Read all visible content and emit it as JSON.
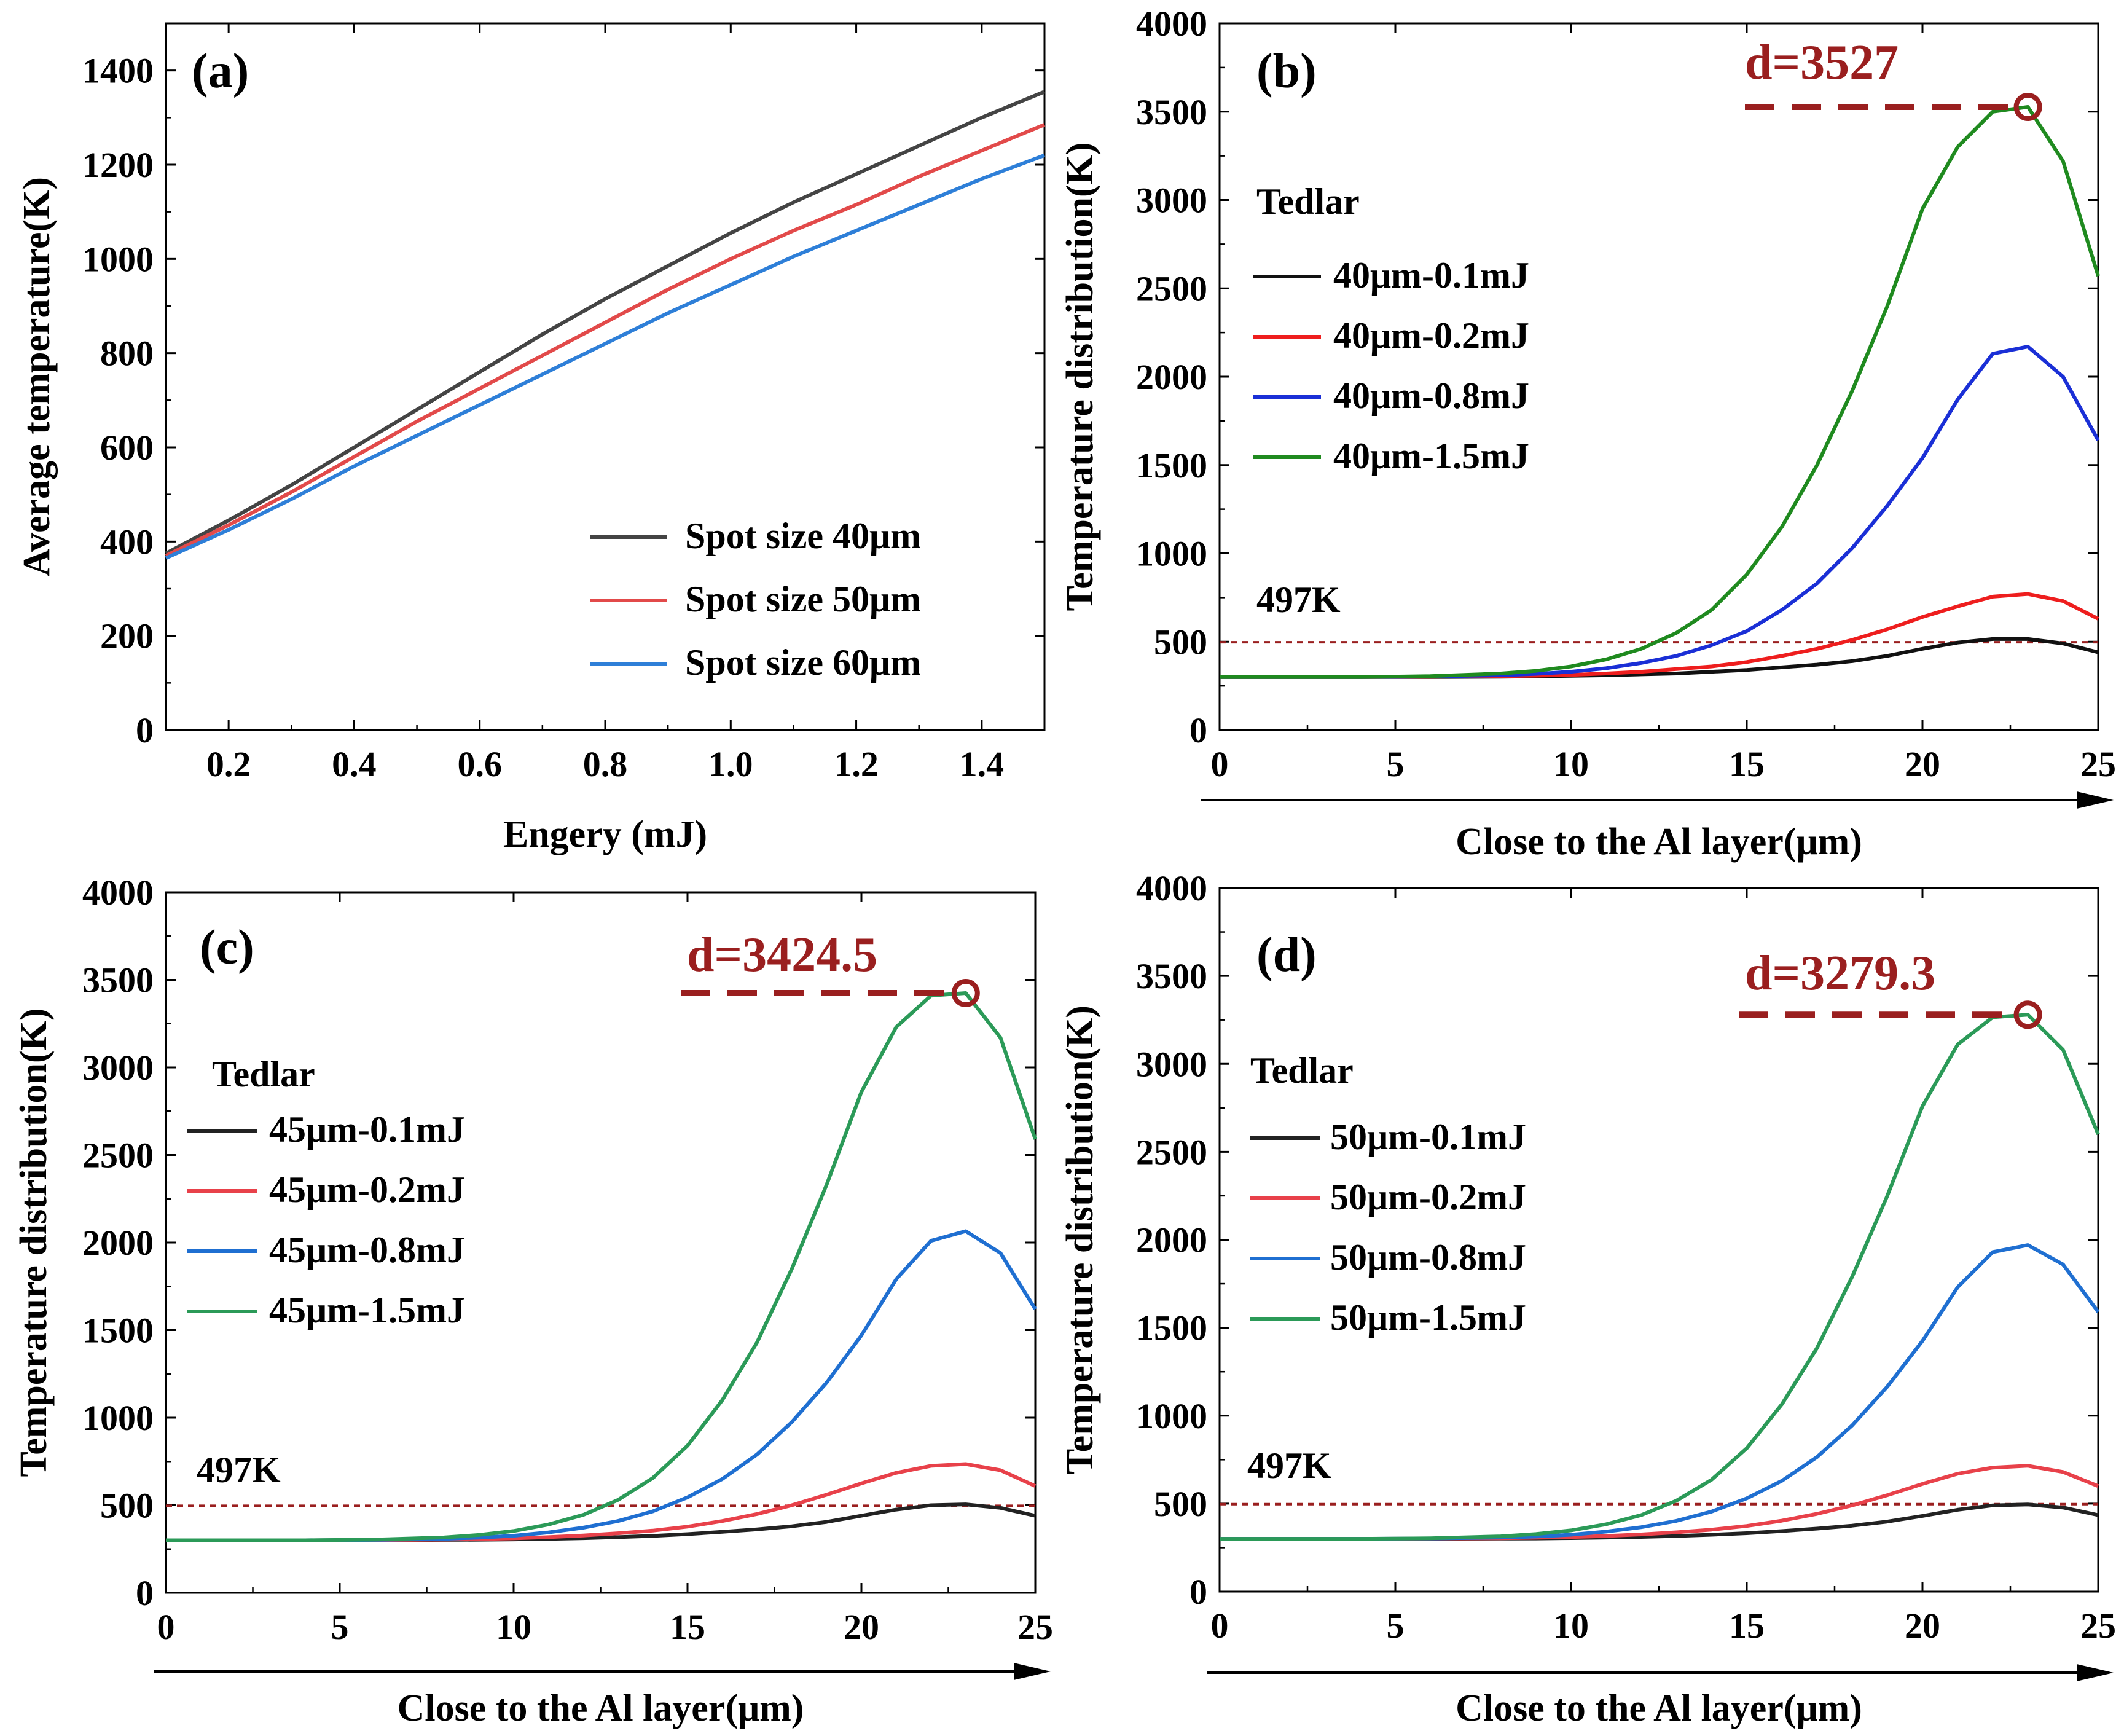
{
  "colors": {
    "black": "#222222",
    "red": "#e8414a",
    "blue": "#1f6fd1",
    "green": "#2b9a58",
    "dark_red": "#9a1f1f",
    "panel_a_black": "#444444",
    "panel_a_red": "#e24a4a",
    "panel_a_blue": "#2e7fd8",
    "panel_b_blue": "#1a2fd6",
    "panel_b_green": "#1f8a1f",
    "panel_b_red": "#ee1e1e",
    "panel_b_black": "#111111"
  },
  "chart_data": [
    {
      "panel": "(a)",
      "type": "line",
      "xlabel": "Engery (mJ)",
      "ylabel": "Average temperature(K)",
      "xlim": [
        0.1,
        1.5
      ],
      "ylim": [
        0,
        1500
      ],
      "xticks": [
        "0.2",
        "0.4",
        "0.6",
        "0.8",
        "1.0",
        "1.2",
        "1.4"
      ],
      "xtick_values": [
        0.2,
        0.4,
        0.6,
        0.8,
        1.0,
        1.2,
        1.4
      ],
      "yticks": [
        "0",
        "200",
        "400",
        "600",
        "800",
        "1000",
        "1200",
        "1400"
      ],
      "ytick_values": [
        0,
        200,
        400,
        600,
        800,
        1000,
        1200,
        1400
      ],
      "x": [
        0.1,
        0.2,
        0.3,
        0.4,
        0.5,
        0.6,
        0.7,
        0.8,
        0.9,
        1.0,
        1.1,
        1.2,
        1.3,
        1.4,
        1.5
      ],
      "series": [
        {
          "name": "Spot size 40μm",
          "color_key": "panel_a_black",
          "values": [
            375,
            445,
            520,
            600,
            680,
            760,
            840,
            915,
            985,
            1055,
            1120,
            1180,
            1240,
            1300,
            1355
          ]
        },
        {
          "name": "Spot size 50μm",
          "color_key": "panel_a_red",
          "values": [
            370,
            435,
            505,
            580,
            655,
            725,
            795,
            865,
            935,
            1000,
            1060,
            1115,
            1175,
            1230,
            1285
          ]
        },
        {
          "name": "Spot size 60μm",
          "color_key": "panel_a_blue",
          "values": [
            365,
            425,
            490,
            560,
            625,
            690,
            755,
            820,
            885,
            945,
            1005,
            1060,
            1115,
            1170,
            1220
          ]
        }
      ],
      "legend": [
        "Spot size 40μm",
        "Spot size 50μm",
        "Spot size 60μm"
      ]
    },
    {
      "panel": "(b)",
      "type": "line",
      "xlabel": "Close to the Al layer(μm)",
      "ylabel": "Temperature distribution(K)",
      "xlim": [
        0,
        25
      ],
      "ylim": [
        0,
        4000
      ],
      "xticks": [
        "0",
        "5",
        "10",
        "15",
        "20",
        "25"
      ],
      "xtick_values": [
        0,
        5,
        10,
        15,
        20,
        25
      ],
      "yticks": [
        "0",
        "500",
        "1000",
        "1500",
        "2000",
        "2500",
        "3000",
        "3500",
        "4000"
      ],
      "ytick_values": [
        0,
        500,
        1000,
        1500,
        2000,
        2500,
        3000,
        3500,
        4000
      ],
      "material": "Tedlar",
      "ref_label": "497K",
      "ref_value": 497,
      "peak_label": "d=3527",
      "peak": [
        23,
        3527
      ],
      "x": [
        0,
        2,
        4,
        6,
        8,
        9,
        10,
        11,
        12,
        13,
        14,
        15,
        16,
        17,
        18,
        19,
        20,
        21,
        22,
        23,
        24,
        25
      ],
      "series": [
        {
          "name": "40μm-0.1mJ",
          "color_key": "panel_b_black",
          "values": [
            300,
            300,
            300,
            300,
            302,
            304,
            307,
            310,
            315,
            320,
            330,
            340,
            355,
            370,
            390,
            420,
            460,
            495,
            515,
            515,
            490,
            440
          ]
        },
        {
          "name": "40μm-0.2mJ",
          "color_key": "panel_b_red",
          "values": [
            300,
            300,
            300,
            302,
            305,
            308,
            312,
            320,
            330,
            345,
            360,
            385,
            420,
            460,
            510,
            570,
            640,
            700,
            755,
            770,
            730,
            630
          ]
        },
        {
          "name": "40μm-0.8mJ",
          "color_key": "panel_b_blue",
          "values": [
            300,
            300,
            300,
            303,
            310,
            318,
            330,
            350,
            380,
            420,
            480,
            560,
            680,
            830,
            1030,
            1270,
            1540,
            1870,
            2130,
            2170,
            2000,
            1640
          ]
        },
        {
          "name": "40μm-1.5mJ",
          "color_key": "panel_b_green",
          "values": [
            300,
            300,
            300,
            305,
            320,
            335,
            360,
            400,
            460,
            550,
            680,
            880,
            1150,
            1500,
            1920,
            2400,
            2950,
            3300,
            3500,
            3527,
            3220,
            2570
          ]
        }
      ],
      "legend": [
        "40μm-0.1mJ",
        "40μm-0.2mJ",
        "40μm-0.8mJ",
        "40μm-1.5mJ"
      ]
    },
    {
      "panel": "(c)",
      "type": "line",
      "xlabel": "Close to the Al layer(μm)",
      "ylabel": "Temperature distribution(K)",
      "xlim": [
        0,
        25
      ],
      "ylim": [
        0,
        4000
      ],
      "xticks": [
        "0",
        "5",
        "10",
        "15",
        "20",
        "25"
      ],
      "xtick_values": [
        0,
        5,
        10,
        15,
        20,
        25
      ],
      "yticks": [
        "0",
        "500",
        "1000",
        "1500",
        "2000",
        "2500",
        "3000",
        "3500",
        "4000"
      ],
      "ytick_values": [
        0,
        500,
        1000,
        1500,
        2000,
        2500,
        3000,
        3500,
        4000
      ],
      "material": "Tedlar",
      "ref_label": "497K",
      "ref_value": 497,
      "peak_label": "d=3424.5",
      "peak": [
        23,
        3424.5
      ],
      "x": [
        0,
        2,
        4,
        6,
        8,
        9,
        10,
        11,
        12,
        13,
        14,
        15,
        16,
        17,
        18,
        19,
        20,
        21,
        22,
        23,
        24,
        25
      ],
      "series": [
        {
          "name": "45μm-0.1mJ",
          "color_key": "black",
          "values": [
            300,
            300,
            300,
            300,
            302,
            303,
            305,
            308,
            312,
            318,
            325,
            335,
            348,
            362,
            380,
            405,
            440,
            475,
            500,
            505,
            485,
            440
          ]
        },
        {
          "name": "45μm-0.2mJ",
          "color_key": "red",
          "values": [
            300,
            300,
            300,
            301,
            304,
            307,
            311,
            318,
            327,
            340,
            355,
            378,
            410,
            450,
            500,
            560,
            625,
            685,
            725,
            735,
            700,
            610
          ]
        },
        {
          "name": "45μm-0.8mJ",
          "color_key": "blue",
          "values": [
            300,
            300,
            300,
            302,
            308,
            315,
            326,
            345,
            372,
            410,
            465,
            545,
            650,
            790,
            975,
            1200,
            1470,
            1790,
            2010,
            2065,
            1940,
            1620
          ]
        },
        {
          "name": "45μm-1.5mJ",
          "color_key": "green",
          "values": [
            300,
            300,
            300,
            304,
            316,
            330,
            353,
            390,
            445,
            530,
            655,
            840,
            1100,
            1430,
            1850,
            2330,
            2860,
            3230,
            3410,
            3424.5,
            3170,
            2590
          ]
        }
      ],
      "legend": [
        "45μm-0.1mJ",
        "45μm-0.2mJ",
        "45μm-0.8mJ",
        "45μm-1.5mJ"
      ]
    },
    {
      "panel": "(d)",
      "type": "line",
      "xlabel": "Close to the Al layer(μm)",
      "ylabel": "Temperature distribution(K)",
      "xlim": [
        0,
        25
      ],
      "ylim": [
        0,
        4000
      ],
      "xticks": [
        "0",
        "5",
        "10",
        "15",
        "20",
        "25"
      ],
      "xtick_values": [
        0,
        5,
        10,
        15,
        20,
        25
      ],
      "yticks": [
        "0",
        "500",
        "1000",
        "1500",
        "2000",
        "2500",
        "3000",
        "3500",
        "4000"
      ],
      "ytick_values": [
        0,
        500,
        1000,
        1500,
        2000,
        2500,
        3000,
        3500,
        4000
      ],
      "material": "Tedlar",
      "ref_label": "497K",
      "ref_value": 497,
      "peak_label": "d=3279.3",
      "peak": [
        23,
        3279.3
      ],
      "x": [
        0,
        2,
        4,
        6,
        8,
        9,
        10,
        11,
        12,
        13,
        14,
        15,
        16,
        17,
        18,
        19,
        20,
        21,
        22,
        23,
        24,
        25
      ],
      "series": [
        {
          "name": "50μm-0.1mJ",
          "color_key": "black",
          "values": [
            300,
            300,
            300,
            300,
            301,
            302,
            304,
            307,
            311,
            316,
            323,
            332,
            344,
            358,
            375,
            398,
            430,
            465,
            490,
            495,
            478,
            435
          ]
        },
        {
          "name": "50μm-0.2mJ",
          "color_key": "red",
          "values": [
            300,
            300,
            300,
            301,
            303,
            306,
            310,
            316,
            325,
            337,
            352,
            373,
            403,
            442,
            490,
            548,
            612,
            670,
            705,
            715,
            680,
            600
          ]
        },
        {
          "name": "50μm-0.8mJ",
          "color_key": "blue",
          "values": [
            300,
            300,
            300,
            302,
            307,
            313,
            323,
            341,
            366,
            402,
            455,
            530,
            630,
            765,
            945,
            1165,
            1425,
            1730,
            1930,
            1970,
            1860,
            1590
          ]
        },
        {
          "name": "50μm-1.5mJ",
          "color_key": "green",
          "values": [
            300,
            300,
            300,
            303,
            314,
            327,
            348,
            383,
            435,
            517,
            636,
            815,
            1065,
            1385,
            1790,
            2250,
            2760,
            3110,
            3265,
            3279.3,
            3080,
            2600
          ]
        }
      ],
      "legend": [
        "50μm-0.1mJ",
        "50μm-0.2mJ",
        "50μm-0.8mJ",
        "50μm-1.5mJ"
      ]
    }
  ]
}
